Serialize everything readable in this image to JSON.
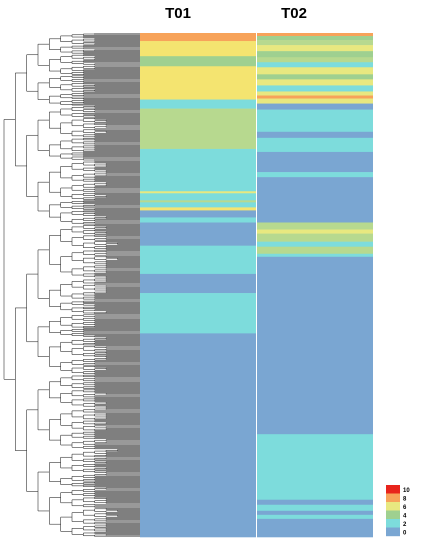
{
  "chart_data": {
    "type": "heatmap",
    "title": "",
    "xlabel": "",
    "ylabel": "",
    "columns": [
      "T01",
      "T02"
    ],
    "row_count": 500,
    "row_dendrogram": true,
    "color_scale": {
      "min": 0,
      "max": 10,
      "tick_labels": [
        "10",
        "8",
        "6",
        "4",
        "2",
        "0"
      ],
      "colors": {
        "0": "#1a6fb0",
        "1": "#7aa6d2",
        "2": "#3fbfbd",
        "3": "#7ddcdc",
        "4": "#9fd090",
        "5": "#b7d98f",
        "6": "#e8e880",
        "7": "#f4e470",
        "8": "#f7a35a",
        "9": "#f7a35a",
        "10": "#e8241c"
      }
    },
    "segments": {
      "T01": [
        {
          "rows": [
            0,
            8
          ],
          "value": 8
        },
        {
          "rows": [
            8,
            23
          ],
          "value": 7
        },
        {
          "rows": [
            23,
            33
          ],
          "value": 4
        },
        {
          "rows": [
            33,
            66
          ],
          "value": 7
        },
        {
          "rows": [
            66,
            75
          ],
          "value": 3
        },
        {
          "rows": [
            75,
            115
          ],
          "value": 5
        },
        {
          "rows": [
            115,
            157
          ],
          "value": 3
        },
        {
          "rows": [
            157,
            159
          ],
          "value": 6
        },
        {
          "rows": [
            159,
            166
          ],
          "value": 3
        },
        {
          "rows": [
            166,
            168
          ],
          "value": 5
        },
        {
          "rows": [
            168,
            173
          ],
          "value": 3
        },
        {
          "rows": [
            173,
            176
          ],
          "value": 7
        },
        {
          "rows": [
            176,
            183
          ],
          "value": 1
        },
        {
          "rows": [
            183,
            188
          ],
          "value": 3
        },
        {
          "rows": [
            188,
            211
          ],
          "value": 1
        },
        {
          "rows": [
            211,
            239
          ],
          "value": 3
        },
        {
          "rows": [
            239,
            258
          ],
          "value": 1
        },
        {
          "rows": [
            258,
            298
          ],
          "value": 3
        },
        {
          "rows": [
            298,
            500
          ],
          "value": 1
        }
      ],
      "T02": [
        {
          "rows": [
            0,
            3
          ],
          "value": 8
        },
        {
          "rows": [
            3,
            7
          ],
          "value": 4
        },
        {
          "rows": [
            7,
            12
          ],
          "value": 5
        },
        {
          "rows": [
            12,
            18
          ],
          "value": 6
        },
        {
          "rows": [
            18,
            24
          ],
          "value": 4
        },
        {
          "rows": [
            24,
            29
          ],
          "value": 5
        },
        {
          "rows": [
            29,
            34
          ],
          "value": 3
        },
        {
          "rows": [
            34,
            41
          ],
          "value": 6
        },
        {
          "rows": [
            41,
            46
          ],
          "value": 4
        },
        {
          "rows": [
            46,
            52
          ],
          "value": 6
        },
        {
          "rows": [
            52,
            58
          ],
          "value": 3
        },
        {
          "rows": [
            58,
            62
          ],
          "value": 6
        },
        {
          "rows": [
            62,
            65
          ],
          "value": 8
        },
        {
          "rows": [
            65,
            70
          ],
          "value": 6
        },
        {
          "rows": [
            70,
            76
          ],
          "value": 1
        },
        {
          "rows": [
            76,
            98
          ],
          "value": 3
        },
        {
          "rows": [
            98,
            104
          ],
          "value": 1
        },
        {
          "rows": [
            104,
            118
          ],
          "value": 3
        },
        {
          "rows": [
            118,
            138
          ],
          "value": 1
        },
        {
          "rows": [
            138,
            143
          ],
          "value": 3
        },
        {
          "rows": [
            143,
            188
          ],
          "value": 1
        },
        {
          "rows": [
            188,
            195
          ],
          "value": 5
        },
        {
          "rows": [
            195,
            199
          ],
          "value": 6
        },
        {
          "rows": [
            199,
            207
          ],
          "value": 5
        },
        {
          "rows": [
            207,
            212
          ],
          "value": 3
        },
        {
          "rows": [
            212,
            219
          ],
          "value": 5
        },
        {
          "rows": [
            219,
            222
          ],
          "value": 3
        },
        {
          "rows": [
            222,
            398
          ],
          "value": 1
        },
        {
          "rows": [
            398,
            463
          ],
          "value": 3
        },
        {
          "rows": [
            463,
            468
          ],
          "value": 1
        },
        {
          "rows": [
            468,
            474
          ],
          "value": 3
        },
        {
          "rows": [
            474,
            478
          ],
          "value": 1
        },
        {
          "rows": [
            478,
            482
          ],
          "value": 3
        },
        {
          "rows": [
            482,
            500
          ],
          "value": 1
        }
      ]
    }
  }
}
